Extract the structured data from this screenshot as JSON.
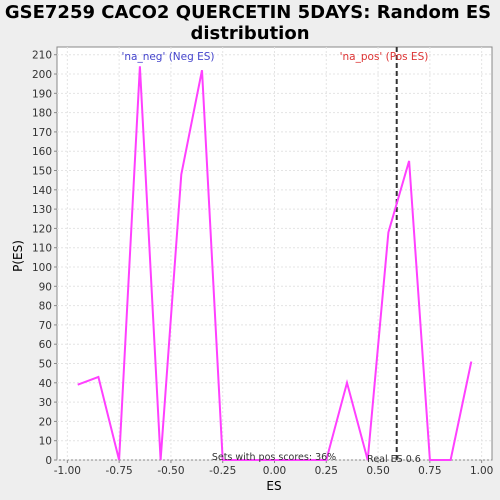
{
  "chart_data": {
    "type": "line",
    "title_line1": "GSE7259 CACO2 QUERCETIN 5DAYS: Random ES",
    "title_line2": "distribution",
    "xlabel": "ES",
    "ylabel": "P(ES)",
    "xlim": [
      -1.05,
      1.05
    ],
    "ylim": [
      0,
      214
    ],
    "x_ticks": [
      "-1.00",
      "-0.75",
      "-0.50",
      "-0.25",
      "0.00",
      "0.25",
      "0.50",
      "0.75",
      "1.00"
    ],
    "y_ticks": [
      0,
      10,
      20,
      30,
      40,
      50,
      60,
      70,
      80,
      90,
      100,
      110,
      120,
      130,
      140,
      150,
      160,
      170,
      180,
      190,
      200,
      210
    ],
    "series": [
      {
        "x": [
          -0.95,
          -0.85,
          -0.75,
          -0.65,
          -0.55,
          -0.45,
          -0.35,
          -0.25,
          -0.15,
          -0.05,
          0.05,
          0.15,
          0.25,
          0.35,
          0.45,
          0.55,
          0.65,
          0.75,
          0.85,
          0.95
        ],
        "y": [
          39,
          43,
          0,
          204,
          0,
          148,
          202,
          0,
          0,
          0,
          0,
          0,
          0,
          40,
          0,
          118,
          155,
          0,
          0,
          51
        ],
        "color": "#ff40ff"
      }
    ],
    "real_es": 0.59,
    "real_es_label": "Real ES 0.6",
    "neg_label": "'na_neg' (Neg ES)",
    "pos_label": "'na_pos' (Pos ES)",
    "neg_color": "#4444cc",
    "pos_color": "#dd3333",
    "footer": "Sets with pos scores: 36%",
    "grid": true
  }
}
